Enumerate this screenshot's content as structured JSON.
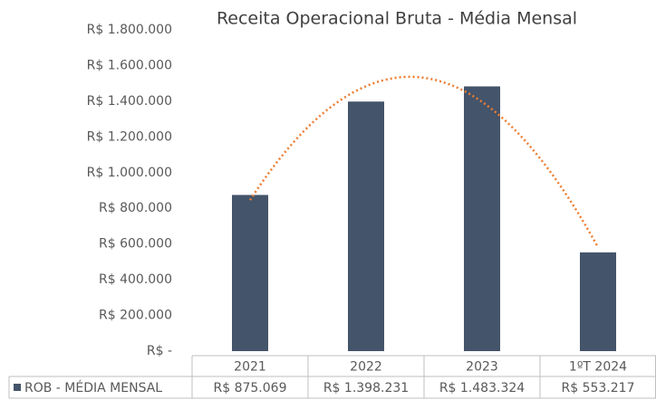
{
  "chart_data": {
    "type": "bar",
    "title": "Receita Operacional Bruta - Média Mensal",
    "categories": [
      "2021",
      "2022",
      "2023",
      "1ºT 2024"
    ],
    "series": [
      {
        "name": "ROB - MÉDIA MENSAL",
        "color": "#44546a",
        "values": [
          875069,
          1398231,
          1483324,
          553217
        ],
        "value_labels": [
          "R$ 875.069",
          "R$ 1.398.231",
          "R$ 1.483.324",
          "R$ 553.217"
        ]
      }
    ],
    "ylim": [
      0,
      1800000
    ],
    "yticks": [
      {
        "value": 0,
        "label": "R$ -"
      },
      {
        "value": 200000,
        "label": "R$ 200.000"
      },
      {
        "value": 400000,
        "label": "R$ 400.000"
      },
      {
        "value": 600000,
        "label": "R$ 600.000"
      },
      {
        "value": 800000,
        "label": "R$ 800.000"
      },
      {
        "value": 1000000,
        "label": "R$ 1.000.000"
      },
      {
        "value": 1200000,
        "label": "R$ 1.200.000"
      },
      {
        "value": 1400000,
        "label": "R$ 1.400.000"
      },
      {
        "value": 1600000,
        "label": "R$ 1.600.000"
      },
      {
        "value": 1800000,
        "label": "R$ 1.800.000"
      }
    ],
    "trendline": {
      "type": "polynomial",
      "order": 2,
      "color": "#ed7d31"
    },
    "data_table": true
  }
}
